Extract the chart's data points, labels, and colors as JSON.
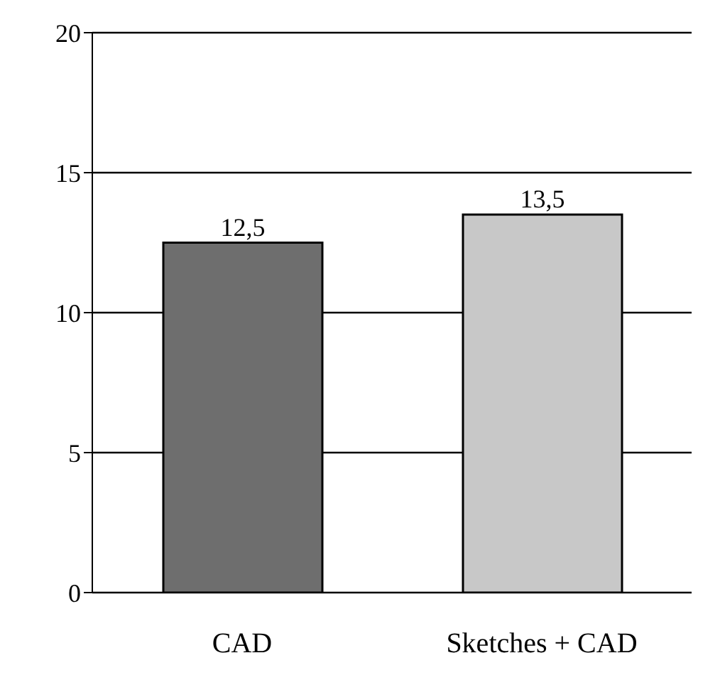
{
  "chart_data": {
    "type": "bar",
    "categories": [
      "CAD",
      "Sketches + CAD"
    ],
    "values": [
      12.5,
      13.5
    ],
    "colors": [
      "#6e6e6e",
      "#c8c8c8"
    ],
    "value_labels": [
      "12,5",
      "13,5"
    ],
    "ylim": [
      0,
      20
    ],
    "yticks": [
      0,
      5,
      10,
      15,
      20
    ],
    "grid": "y"
  }
}
